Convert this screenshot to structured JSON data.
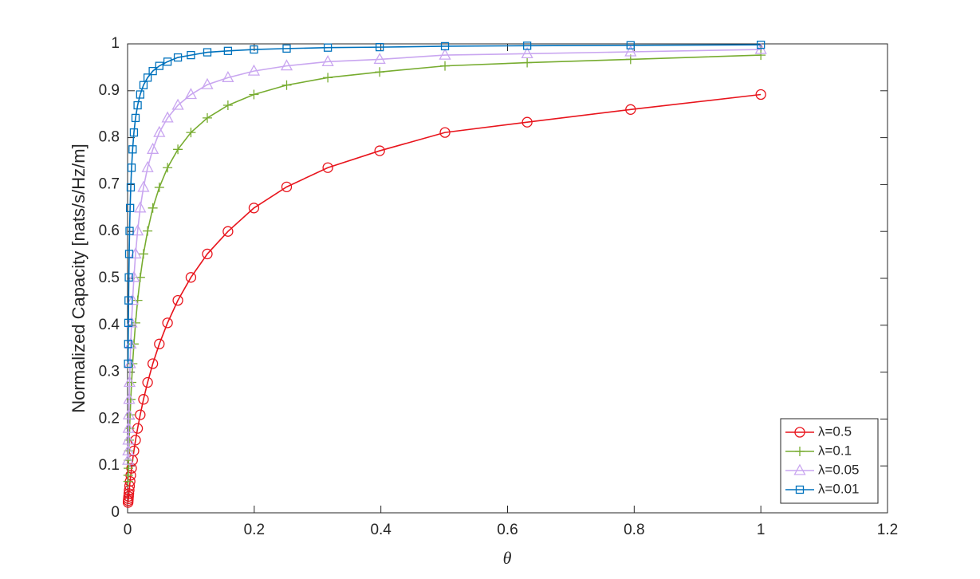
{
  "chart_data": {
    "type": "line",
    "xlabel": "θ",
    "ylabel": "Normalized Capacity [nats/s/Hz/m]",
    "x": [
      1,
      0.7943,
      0.631,
      0.5012,
      0.3981,
      0.3162,
      0.2512,
      0.1995,
      0.1585,
      0.1259,
      0.1,
      0.07943,
      0.0631,
      0.05012,
      0.03981,
      0.03162,
      0.02512,
      0.01995,
      0.01585,
      0.01259,
      0.01,
      0.007943,
      0.00631,
      0.005012,
      0.003981,
      0.003162,
      0.002512,
      0.001995,
      0.001585,
      0.001259,
      0.001,
      0.000794
    ],
    "series": [
      {
        "name": "λ=0.5",
        "color": "#e8141c",
        "marker": "circle",
        "values": [
          0.892,
          0.86,
          0.833,
          0.811,
          0.772,
          0.736,
          0.695,
          0.65,
          0.6,
          0.552,
          0.502,
          0.453,
          0.405,
          0.36,
          0.318,
          0.278,
          0.242,
          0.209,
          0.18,
          0.155,
          0.132,
          0.112,
          0.095,
          0.08,
          0.067,
          0.057,
          0.048,
          0.041,
          0.035,
          0.03,
          0.026,
          0.022
        ]
      },
      {
        "name": "λ=0.1",
        "color": "#77ac30",
        "marker": "plus",
        "values": [
          0.976,
          0.967,
          0.96,
          0.953,
          0.94,
          0.928,
          0.912,
          0.892,
          0.869,
          0.842,
          0.811,
          0.775,
          0.736,
          0.694,
          0.65,
          0.601,
          0.552,
          0.502,
          0.453,
          0.405,
          0.36,
          0.318,
          0.278,
          0.242,
          0.209,
          0.18,
          0.155,
          0.132,
          0.112,
          0.095,
          0.08,
          0.067
        ]
      },
      {
        "name": "λ=0.05",
        "color": "#c9a6f0",
        "marker": "triangle",
        "values": [
          0.988,
          0.983,
          0.979,
          0.976,
          0.967,
          0.962,
          0.953,
          0.942,
          0.928,
          0.913,
          0.892,
          0.869,
          0.842,
          0.811,
          0.775,
          0.736,
          0.694,
          0.65,
          0.601,
          0.552,
          0.502,
          0.453,
          0.405,
          0.36,
          0.318,
          0.278,
          0.242,
          0.209,
          0.18,
          0.155,
          0.132,
          0.112
        ]
      },
      {
        "name": "λ=0.01",
        "color": "#0072bd",
        "marker": "square",
        "values": [
          0.998,
          0.997,
          0.996,
          0.995,
          0.993,
          0.992,
          0.99,
          0.988,
          0.985,
          0.982,
          0.976,
          0.971,
          0.962,
          0.953,
          0.942,
          0.928,
          0.912,
          0.892,
          0.869,
          0.842,
          0.811,
          0.775,
          0.736,
          0.694,
          0.65,
          0.601,
          0.552,
          0.502,
          0.453,
          0.405,
          0.36,
          0.318
        ]
      }
    ],
    "xlim": [
      0,
      1.2
    ],
    "xticks": [
      0,
      0.2,
      0.4,
      0.6,
      0.8,
      1,
      1.2
    ],
    "ylim": [
      0,
      1
    ],
    "yticks": [
      0,
      0.1,
      0.2,
      0.3,
      0.4,
      0.5,
      0.6,
      0.7,
      0.8,
      0.9,
      1
    ],
    "legend": "lower right"
  }
}
